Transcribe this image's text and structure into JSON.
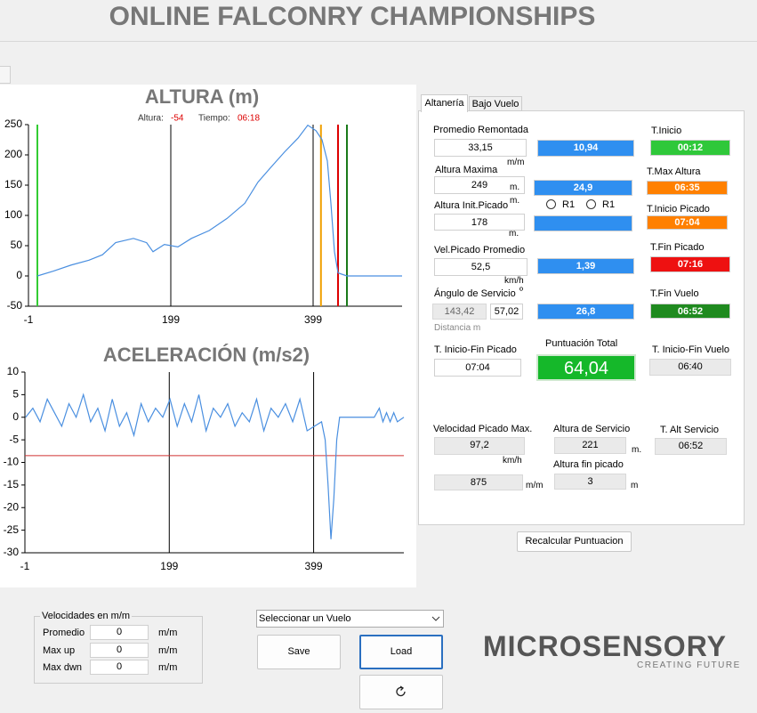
{
  "header": {
    "title": "ONLINE FALCONRY CHAMPIONSHIPS"
  },
  "chart_data": [
    {
      "type": "line",
      "title": "ALTURA (m)",
      "readout": [
        {
          "label": "Altura:",
          "value": "-54"
        },
        {
          "label": "Tiempo:",
          "value": "06:18"
        }
      ],
      "x": [
        11.5,
        34,
        59,
        84,
        103,
        121.5,
        146.5,
        165,
        174,
        190,
        209,
        228,
        253,
        278,
        303,
        321.5,
        340,
        359,
        378,
        391.5,
        403,
        411.5,
        419,
        424,
        429,
        434,
        446.5,
        524
      ],
      "series": [
        {
          "color": "#4a8fe0",
          "values": [
            0,
            8,
            18,
            26,
            35,
            55,
            62,
            55,
            40,
            52,
            48,
            62,
            75,
            95,
            120,
            155,
            180,
            205,
            228,
            249,
            240,
            225,
            190,
            120,
            40,
            5,
            0,
            0
          ]
        }
      ],
      "xlim": [
        -1,
        524
      ],
      "ylim": [
        -50,
        250
      ],
      "xticks": [
        -1,
        199,
        399
      ],
      "yticks": [
        250,
        200,
        150,
        100,
        50,
        0,
        -50
      ],
      "grid": "x",
      "vlines": [
        {
          "value": 11.5,
          "color": "#33cc33"
        },
        {
          "value": 410,
          "color": "#f0a000"
        },
        {
          "value": 434,
          "color": "#dd0000"
        },
        {
          "value": 446.5,
          "color": "#1a7a1a"
        }
      ]
    },
    {
      "type": "line",
      "title": "ACELERACIÓN (m/s2)",
      "x": [
        0,
        10,
        20,
        30,
        40,
        50,
        60,
        70,
        80,
        90,
        100,
        110,
        120,
        130,
        140,
        150,
        160,
        170,
        180,
        190,
        200,
        210,
        220,
        230,
        240,
        250,
        260,
        270,
        280,
        290,
        300,
        310,
        320,
        330,
        340,
        350,
        360,
        370,
        380,
        390,
        400,
        410,
        415,
        419,
        423,
        427,
        431,
        435,
        460,
        483,
        490,
        495,
        500,
        505,
        510,
        515,
        524
      ],
      "series": [
        {
          "color": "#4a8fe0",
          "values": [
            0,
            2,
            -1,
            4,
            1,
            -2,
            3,
            0,
            5,
            -1,
            2,
            -3,
            4,
            -2,
            1,
            -4,
            3,
            -1,
            2,
            0,
            4,
            -2,
            3,
            -1,
            5,
            -3,
            2,
            0,
            3,
            -2,
            1,
            -1,
            4,
            -3,
            2,
            0,
            3,
            -1,
            4,
            -3,
            -2,
            -1,
            -5,
            -15,
            -27,
            -18,
            -5,
            0,
            0,
            0,
            2,
            -1,
            1,
            -1,
            1,
            -1,
            0
          ]
        }
      ],
      "xlim": [
        -1,
        524
      ],
      "ylim": [
        -30,
        10
      ],
      "xticks": [
        -1,
        199,
        399
      ],
      "yticks": [
        10,
        5,
        0,
        -5,
        -10,
        -15,
        -20,
        -25,
        -30
      ],
      "grid": "x",
      "hlines": [
        {
          "value": -8.5,
          "color": "#d03030"
        }
      ]
    }
  ],
  "panel": {
    "tabs": [
      "Altanería",
      "Bajo Vuelo"
    ],
    "promedio_remontada": {
      "label": "Promedio Remontada",
      "value": "33,15",
      "unit": "m/m"
    },
    "altura_maxima": {
      "label": "Altura Maxima",
      "value": "249",
      "unit": "m."
    },
    "altura_init_picado": {
      "label": "Altura Init.Picado",
      "value": "178",
      "units": [
        "m.",
        "m."
      ]
    },
    "vel_picado_promedio": {
      "label": "Vel.Picado Promedio",
      "value": "52,5",
      "unit": "km/h"
    },
    "angulo_servicio": {
      "label": "Ángulo de Servicio",
      "symbol": "º",
      "values": [
        "143,42",
        "57,02"
      ],
      "note": "Distancia m"
    },
    "scores": [
      "10,94",
      "24,9",
      "1,39",
      "26,8"
    ],
    "radios": [
      "R1",
      "R1"
    ],
    "times": [
      {
        "label": "T.Inicio",
        "value": "00:12"
      },
      {
        "label": "T.Max Altura",
        "value": "06:35"
      },
      {
        "label": "T.Inicio Picado",
        "value": "07:04"
      },
      {
        "label": "T.Fin Picado",
        "value": "07:16"
      },
      {
        "label": "T.Fin Vuelo",
        "value": "06:52"
      }
    ],
    "inicio_fin_picado": {
      "label": "T. Inicio-Fin Picado",
      "value": "07:04"
    },
    "puntuacion_total": {
      "label": "Puntuación Total",
      "value": "64,04"
    },
    "inicio_fin_vuelo": {
      "label": "T. Inicio-Fin Vuelo",
      "value": "06:40"
    },
    "velocidad_picado_max": {
      "label": "Velocidad Picado Max.",
      "value": "97,2",
      "unit": "km/h"
    },
    "velocidad_extra": {
      "value": "875",
      "unit": "m/m"
    },
    "altura_servicio": {
      "label": "Altura de Servicio",
      "value": "221",
      "unit": "m."
    },
    "altura_fin_picado": {
      "label": "Altura fin picado",
      "value": "3",
      "unit": "m"
    },
    "t_alt_servicio": {
      "label": "T. Alt Servicio",
      "value": "06:52"
    }
  },
  "recalc_button": "Recalcular Puntuacion",
  "velocidades": {
    "title": "Velocidades en m/m",
    "rows": [
      {
        "label": "Promedio",
        "value": "0",
        "unit": "m/m"
      },
      {
        "label": "Max up",
        "value": "0",
        "unit": "m/m"
      },
      {
        "label": "Max dwn",
        "value": "0",
        "unit": "m/m"
      }
    ]
  },
  "flight_select": "Seleccionar un Vuelo",
  "buttons": [
    "Save",
    "Load"
  ],
  "logo": {
    "name": "MICROSENSORY",
    "tagline": "CREATING FUTURE"
  }
}
